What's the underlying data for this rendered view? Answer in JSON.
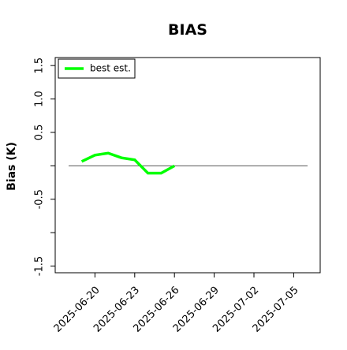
{
  "chart_data": {
    "type": "line",
    "title": "BIAS",
    "y_label": "Bias (K)",
    "x": [
      "2025-06-19",
      "2025-06-20",
      "2025-06-21",
      "2025-06-22",
      "2025-06-23",
      "2025-06-24",
      "2025-06-25",
      "2025-06-26"
    ],
    "series": [
      {
        "name": "best est.",
        "color": "#00ff00",
        "values": [
          0.065,
          0.16,
          0.19,
          0.12,
          0.09,
          -0.11,
          -0.11,
          0.0
        ]
      }
    ],
    "xlim": [
      "2025-06-17",
      "2025-07-07"
    ],
    "xticks": [
      "2025-06-20",
      "2025-06-23",
      "2025-06-26",
      "2025-06-29",
      "2025-07-02",
      "2025-07-05"
    ],
    "ylim": [
      -1.6,
      1.62
    ],
    "yticks": [
      -1.5,
      {
        "value": -1,
        "label": null
      },
      -0.5,
      {
        "value": 0,
        "label": null
      },
      0.5,
      {
        "value": 1,
        "label": "1.0"
      },
      1.5
    ],
    "hline": 0,
    "legend": "top-left"
  }
}
